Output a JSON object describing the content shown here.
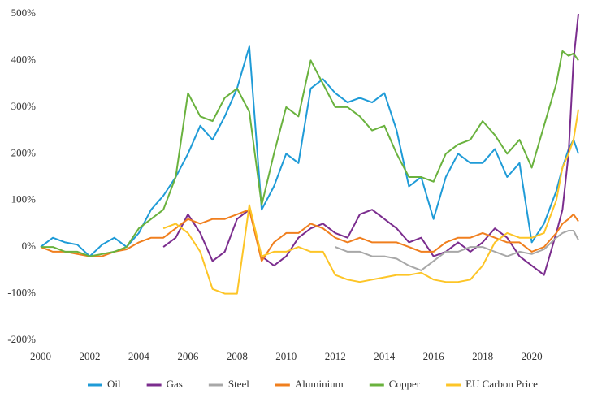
{
  "chart_data": {
    "type": "line",
    "x": [
      2000,
      2000.5,
      2001,
      2001.5,
      2002,
      2002.5,
      2003,
      2003.5,
      2004,
      2004.5,
      2005,
      2005.5,
      2006,
      2006.5,
      2007,
      2007.5,
      2008,
      2008.5,
      2009,
      2009.5,
      2010,
      2010.5,
      2011,
      2011.5,
      2012,
      2012.5,
      2013,
      2013.5,
      2014,
      2014.5,
      2015,
      2015.5,
      2016,
      2016.5,
      2017,
      2017.5,
      2018,
      2018.5,
      2019,
      2019.5,
      2020,
      2020.5,
      2021,
      2021.25,
      2021.5,
      2021.7,
      2021.9
    ],
    "series": [
      {
        "name": "Oil",
        "color": "#1f9bd7",
        "values": [
          0,
          20,
          10,
          5,
          -20,
          5,
          20,
          0,
          30,
          80,
          110,
          150,
          200,
          260,
          230,
          280,
          340,
          430,
          80,
          130,
          200,
          180,
          340,
          360,
          330,
          310,
          320,
          310,
          330,
          250,
          130,
          150,
          60,
          150,
          200,
          180,
          180,
          210,
          150,
          180,
          10,
          50,
          120,
          170,
          210,
          230,
          200
        ]
      },
      {
        "name": "Gas",
        "color": "#7b2d8e",
        "values": [
          null,
          null,
          null,
          null,
          null,
          null,
          null,
          null,
          null,
          null,
          0,
          20,
          70,
          30,
          -30,
          -10,
          60,
          80,
          -20,
          -40,
          -20,
          20,
          40,
          50,
          30,
          20,
          70,
          80,
          60,
          40,
          10,
          20,
          -20,
          -10,
          10,
          -10,
          10,
          40,
          20,
          -20,
          -40,
          -60,
          30,
          80,
          200,
          400,
          500
        ]
      },
      {
        "name": "Steel",
        "color": "#a8a8a8",
        "values": [
          null,
          null,
          null,
          null,
          null,
          null,
          null,
          null,
          null,
          null,
          null,
          null,
          null,
          null,
          null,
          null,
          null,
          null,
          null,
          null,
          null,
          null,
          null,
          null,
          0,
          -10,
          -10,
          -20,
          -20,
          -25,
          -40,
          -50,
          -30,
          -10,
          -10,
          0,
          0,
          -10,
          -20,
          -10,
          -15,
          -5,
          20,
          30,
          35,
          35,
          15
        ]
      },
      {
        "name": "Aluminium",
        "color": "#f07f1e",
        "values": [
          0,
          -10,
          -10,
          -15,
          -20,
          -20,
          -10,
          -5,
          10,
          20,
          20,
          40,
          60,
          50,
          60,
          60,
          70,
          80,
          -30,
          10,
          30,
          30,
          50,
          40,
          20,
          10,
          20,
          10,
          10,
          10,
          0,
          -10,
          -10,
          10,
          20,
          20,
          30,
          20,
          10,
          10,
          -10,
          0,
          30,
          50,
          60,
          70,
          55
        ]
      },
      {
        "name": "Copper",
        "color": "#6ab23e",
        "values": [
          0,
          0,
          -10,
          -10,
          -20,
          -15,
          -10,
          0,
          40,
          60,
          80,
          150,
          330,
          280,
          270,
          320,
          340,
          290,
          90,
          200,
          300,
          280,
          400,
          350,
          300,
          300,
          280,
          250,
          260,
          200,
          150,
          150,
          140,
          200,
          220,
          230,
          270,
          240,
          200,
          230,
          170,
          260,
          350,
          420,
          410,
          415,
          400
        ]
      },
      {
        "name": "EU Carbon Price",
        "color": "#fdc527",
        "values": [
          null,
          null,
          null,
          null,
          null,
          null,
          null,
          null,
          null,
          null,
          40,
          50,
          30,
          -10,
          -90,
          -100,
          -100,
          90,
          -20,
          -10,
          -10,
          0,
          -10,
          -10,
          -60,
          -70,
          -75,
          -70,
          -65,
          -60,
          -60,
          -55,
          -70,
          -75,
          -75,
          -70,
          -40,
          10,
          30,
          20,
          20,
          30,
          100,
          170,
          200,
          230,
          295
        ]
      }
    ],
    "xlim": [
      2000,
      2021.9
    ],
    "xticks": [
      2000,
      2002,
      2004,
      2006,
      2008,
      2010,
      2012,
      2014,
      2016,
      2018,
      2020
    ],
    "ylim": [
      -200,
      500
    ],
    "yticks": [
      {
        "value": -200,
        "label": "-200%"
      },
      {
        "value": -100,
        "label": "-100%"
      },
      {
        "value": 0,
        "label": "0%"
      },
      {
        "value": 100,
        "label": "100%"
      },
      {
        "value": 200,
        "label": "200%"
      },
      {
        "value": 300,
        "label": "300%"
      },
      {
        "value": 400,
        "label": "400%"
      },
      {
        "value": 500,
        "label": "500%"
      }
    ],
    "legend": "bottom"
  }
}
